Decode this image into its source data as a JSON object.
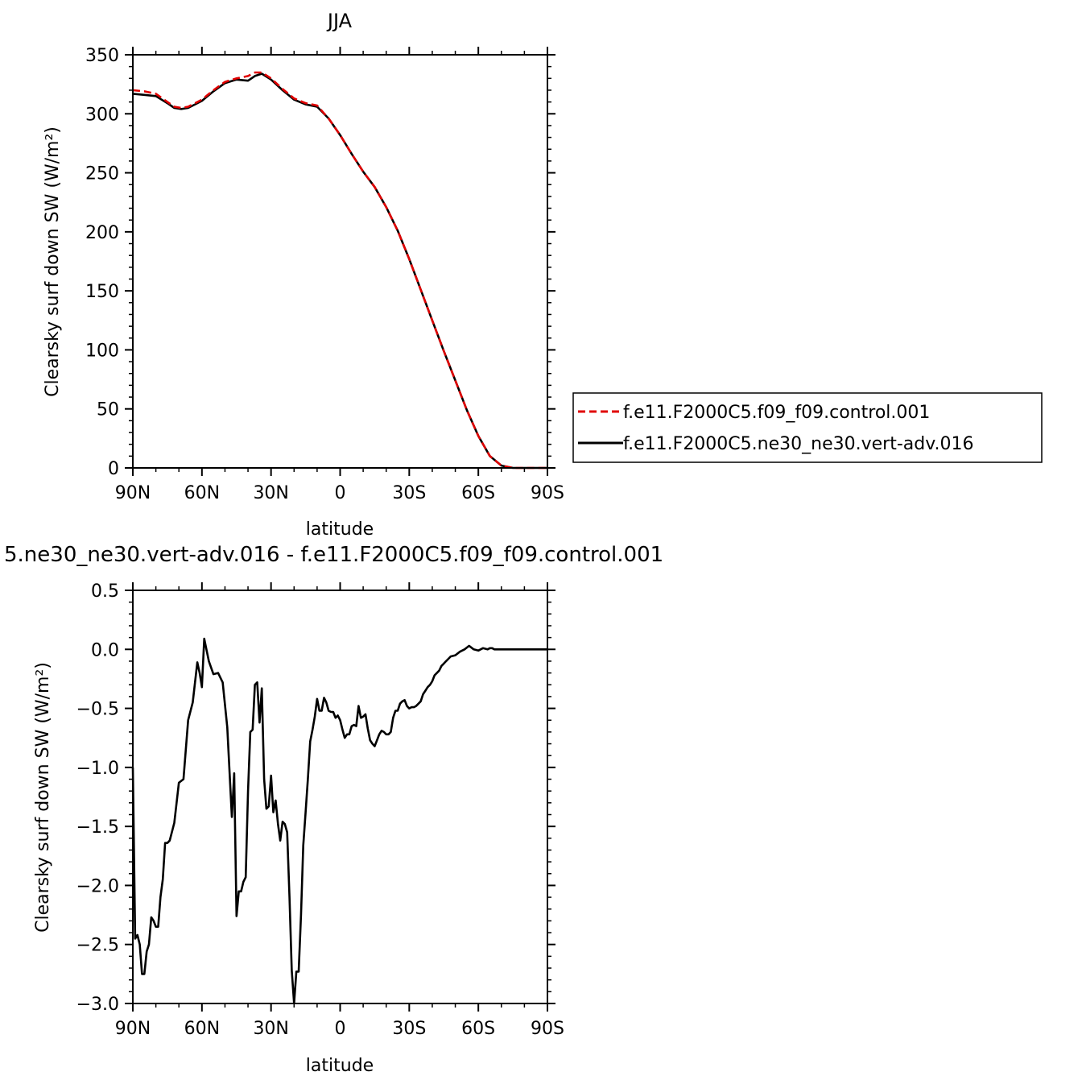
{
  "chart_data": [
    {
      "type": "line",
      "title": "JJA",
      "xlabel": "latitude",
      "ylabel": "Clearsky surf down SW (W/m²)",
      "xlim": [
        90,
        -90
      ],
      "ylim": [
        0,
        350
      ],
      "xticks": [
        90,
        60,
        30,
        0,
        -30,
        -60,
        -90
      ],
      "xtick_labels": [
        "90N",
        "60N",
        "30N",
        "0",
        "30S",
        "60S",
        "90S"
      ],
      "yticks": [
        0,
        50,
        100,
        150,
        200,
        250,
        300,
        350
      ],
      "ytick_labels": [
        "0",
        "50",
        "100",
        "150",
        "200",
        "250",
        "300",
        "350"
      ],
      "legend_position": "right",
      "series": [
        {
          "name": "f.e11.F2000C5.f09_f09.control.001",
          "color": "#e00000",
          "dash": true,
          "x": [
            90,
            85,
            80,
            75,
            72,
            69,
            66,
            63,
            60,
            55,
            50,
            45,
            40,
            37,
            34,
            30,
            25,
            20,
            15,
            10,
            5,
            0,
            -5,
            -10,
            -15,
            -20,
            -25,
            -30,
            -35,
            -40,
            -45,
            -50,
            -55,
            -60,
            -65,
            -70,
            -75,
            -80,
            -85,
            -90
          ],
          "values": [
            320,
            319,
            317,
            310,
            306,
            305,
            306,
            309,
            312,
            320,
            327,
            330,
            332,
            335,
            335,
            330,
            321,
            313,
            309,
            307,
            296,
            282,
            266,
            251,
            238,
            221,
            201,
            177,
            151,
            125,
            99,
            74,
            49,
            27,
            10,
            2,
            0,
            0,
            0,
            0
          ]
        },
        {
          "name": "f.e11.F2000C5.ne30_ne30.vert-adv.016",
          "color": "#000000",
          "dash": false,
          "x": [
            90,
            85,
            80,
            75,
            72,
            69,
            66,
            63,
            60,
            55,
            50,
            45,
            40,
            37,
            34,
            30,
            25,
            20,
            15,
            10,
            5,
            0,
            -5,
            -10,
            -15,
            -20,
            -25,
            -30,
            -35,
            -40,
            -45,
            -50,
            -55,
            -60,
            -65,
            -70,
            -75,
            -80,
            -85,
            -90
          ],
          "values": [
            317,
            316,
            315,
            309,
            305,
            304,
            305,
            308,
            311,
            319,
            326,
            329,
            328,
            332,
            334,
            329,
            320,
            312,
            308,
            306,
            296,
            282,
            266,
            251,
            238,
            221,
            201,
            177,
            151,
            125,
            99,
            74,
            49,
            27,
            10,
            2,
            0,
            0,
            0,
            0
          ]
        }
      ]
    },
    {
      "type": "line",
      "title": "5.ne30_ne30.vert-adv.016 - f.e11.F2000C5.f09_f09.control.001",
      "xlabel": "latitude",
      "ylabel": "Clearsky surf down SW (W/m²)",
      "xlim": [
        90,
        -90
      ],
      "ylim": [
        -3.0,
        0.5
      ],
      "xticks": [
        90,
        60,
        30,
        0,
        -30,
        -60,
        -90
      ],
      "xtick_labels": [
        "90N",
        "60N",
        "30N",
        "0",
        "30S",
        "60S",
        "90S"
      ],
      "yticks": [
        0.5,
        0.0,
        -0.5,
        -1.0,
        -1.5,
        -2.0,
        -2.5,
        -3.0
      ],
      "ytick_labels": [
        "0.5",
        "0.0",
        "-0.5",
        "-1.0",
        "-1.5",
        "-2.0",
        "-2.5",
        "-3.0"
      ],
      "series": [
        {
          "color": "#000000",
          "dash": false,
          "x": [
            90,
            89,
            88,
            87,
            86,
            85,
            84,
            83,
            82,
            81,
            80,
            79,
            78,
            77,
            76,
            75,
            74,
            72,
            70,
            68,
            66,
            64,
            62,
            61,
            60,
            59,
            57,
            55,
            53,
            51,
            49,
            47,
            46,
            45,
            44,
            43,
            42,
            41,
            40,
            39,
            38,
            37,
            36,
            35,
            34,
            33,
            32,
            31,
            30,
            29,
            28,
            27,
            26,
            25,
            24,
            23,
            22,
            21,
            20,
            19,
            18,
            17,
            16,
            15,
            14,
            13,
            12,
            11,
            10,
            9,
            8,
            7,
            6,
            5,
            4,
            3,
            2,
            1,
            0,
            -1,
            -2,
            -3,
            -4,
            -5,
            -6,
            -7,
            -8,
            -9,
            -10,
            -11,
            -12,
            -13,
            -14,
            -15,
            -16,
            -17,
            -18,
            -19,
            -20,
            -21,
            -22,
            -23,
            -24,
            -25,
            -26,
            -27,
            -28,
            -29,
            -30,
            -31,
            -32,
            -33,
            -34,
            -35,
            -36,
            -37,
            -38,
            -39,
            -40,
            -41,
            -42,
            -43,
            -44,
            -45,
            -46,
            -47,
            -48,
            -50,
            -52,
            -54,
            -56,
            -58,
            -60,
            -62,
            -64,
            -65,
            -66,
            -67,
            -68,
            -70,
            -72,
            -75,
            -80,
            -85,
            -90
          ],
          "values": [
            -1.0,
            -2.45,
            -2.42,
            -2.5,
            -2.75,
            -2.75,
            -2.56,
            -2.5,
            -2.27,
            -2.3,
            -2.35,
            -2.35,
            -2.1,
            -1.95,
            -1.64,
            -1.64,
            -1.62,
            -1.47,
            -1.13,
            -1.1,
            -0.6,
            -0.45,
            -0.11,
            -0.2,
            -0.32,
            0.09,
            -0.1,
            -0.21,
            -0.2,
            -0.28,
            -0.66,
            -1.42,
            -1.05,
            -2.26,
            -2.05,
            -2.05,
            -1.97,
            -1.93,
            -1.2,
            -0.7,
            -0.68,
            -0.3,
            -0.28,
            -0.62,
            -0.33,
            -1.1,
            -1.35,
            -1.33,
            -1.07,
            -1.38,
            -1.28,
            -1.48,
            -1.62,
            -1.46,
            -1.48,
            -1.55,
            -2.1,
            -2.72,
            -3.0,
            -2.73,
            -2.73,
            -2.25,
            -1.66,
            -1.38,
            -1.1,
            -0.78,
            -0.68,
            -0.57,
            -0.42,
            -0.52,
            -0.52,
            -0.41,
            -0.45,
            -0.52,
            -0.53,
            -0.53,
            -0.58,
            -0.56,
            -0.6,
            -0.68,
            -0.75,
            -0.72,
            -0.72,
            -0.65,
            -0.64,
            -0.65,
            -0.48,
            -0.58,
            -0.57,
            -0.55,
            -0.67,
            -0.77,
            -0.8,
            -0.82,
            -0.77,
            -0.72,
            -0.69,
            -0.7,
            -0.72,
            -0.72,
            -0.7,
            -0.58,
            -0.52,
            -0.52,
            -0.46,
            -0.44,
            -0.43,
            -0.48,
            -0.5,
            -0.49,
            -0.49,
            -0.48,
            -0.46,
            -0.44,
            -0.38,
            -0.35,
            -0.32,
            -0.3,
            -0.27,
            -0.22,
            -0.2,
            -0.18,
            -0.14,
            -0.12,
            -0.1,
            -0.08,
            -0.06,
            -0.05,
            -0.02,
            0.0,
            0.03,
            0.0,
            -0.01,
            0.01,
            0.0,
            0.01,
            0.01,
            0.0,
            0.0,
            0.0,
            0.0,
            0.0,
            0.0,
            0.0,
            0.0
          ]
        }
      ]
    }
  ]
}
